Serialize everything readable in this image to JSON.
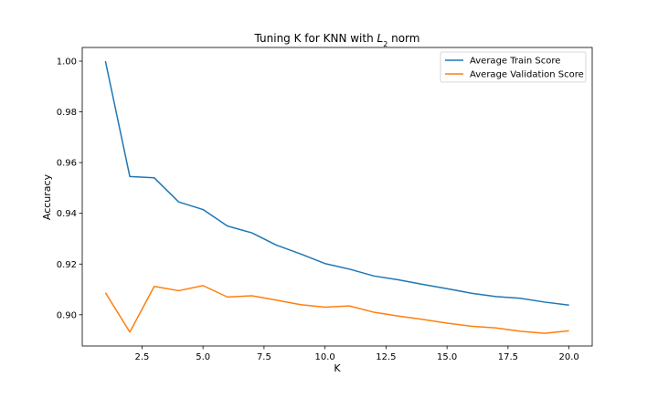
{
  "chart_data": {
    "type": "line",
    "title": {
      "prefix": "Tuning K for KNN with ",
      "math_base": "L",
      "math_sub": "2",
      "suffix": " norm"
    },
    "xlabel": "K",
    "ylabel": "Accuracy",
    "xlim": [
      0.05,
      20.95
    ],
    "ylim": [
      0.8877,
      1.0054
    ],
    "x_ticks": [
      2.5,
      5.0,
      7.5,
      10.0,
      12.5,
      15.0,
      17.5,
      20.0
    ],
    "x_tick_labels": [
      "2.5",
      "5.0",
      "7.5",
      "10.0",
      "12.5",
      "15.0",
      "17.5",
      "20.0"
    ],
    "y_ticks": [
      0.9,
      0.92,
      0.94,
      0.96,
      0.98,
      1.0
    ],
    "y_tick_labels": [
      "0.90",
      "0.92",
      "0.94",
      "0.96",
      "0.98",
      "1.00"
    ],
    "grid": false,
    "legend_position": "top-right",
    "x": [
      1,
      2,
      3,
      4,
      5,
      6,
      7,
      8,
      9,
      10,
      11,
      12,
      13,
      14,
      15,
      16,
      17,
      18,
      19,
      20
    ],
    "series": [
      {
        "name": "Average Train Score",
        "color": "#1f77b4",
        "values": [
          1.0,
          0.9545,
          0.954,
          0.9445,
          0.9415,
          0.935,
          0.9323,
          0.9275,
          0.924,
          0.9202,
          0.918,
          0.9153,
          0.9138,
          0.912,
          0.9103,
          0.9085,
          0.9072,
          0.9065,
          0.905,
          0.9038
        ]
      },
      {
        "name": "Average Validation Score",
        "color": "#ff7f0e",
        "values": [
          0.9087,
          0.8932,
          0.9112,
          0.9095,
          0.9115,
          0.907,
          0.9075,
          0.9058,
          0.904,
          0.903,
          0.9035,
          0.901,
          0.8995,
          0.8982,
          0.8967,
          0.8955,
          0.8948,
          0.8935,
          0.8927,
          0.8937
        ]
      }
    ]
  }
}
